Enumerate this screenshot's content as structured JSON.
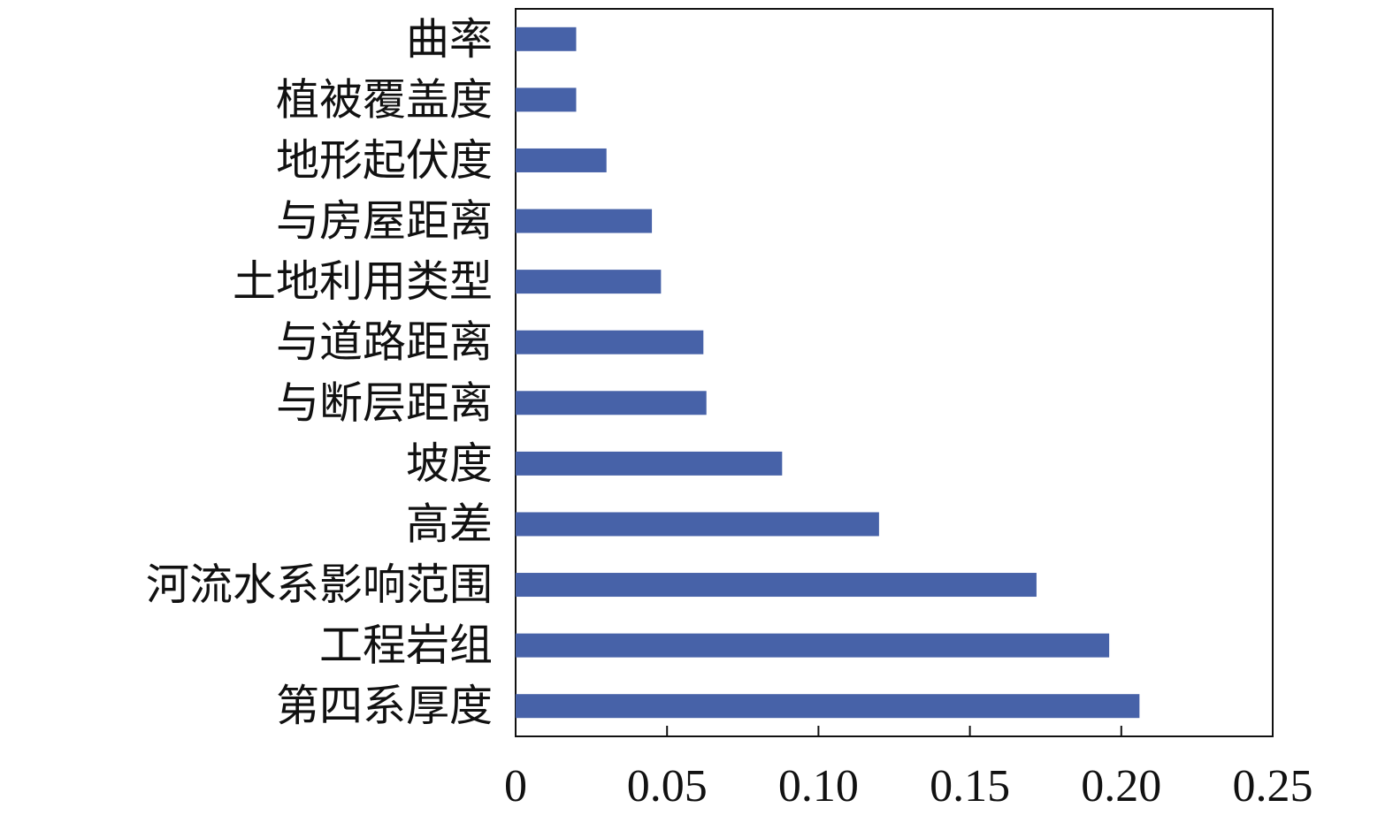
{
  "chart_data": {
    "type": "bar",
    "orientation": "horizontal",
    "title": "",
    "xlabel": "",
    "ylabel": "",
    "categories": [
      "曲率",
      "植被覆盖度",
      "地形起伏度",
      "与房屋距离",
      "土地利用类型",
      "与道路距离",
      "与断层距离",
      "坡度",
      "高差",
      "河流水系影响范围",
      "工程岩组",
      "第四系厚度"
    ],
    "values": [
      0.02,
      0.02,
      0.03,
      0.045,
      0.048,
      0.062,
      0.063,
      0.088,
      0.12,
      0.172,
      0.196,
      0.206
    ],
    "xlim": [
      0,
      0.25
    ],
    "xticks": [
      0,
      0.05,
      0.1,
      0.15,
      0.2,
      0.25
    ],
    "xtick_labels": [
      "0",
      "0.05",
      "0.10",
      "0.15",
      "0.20",
      "0.25"
    ],
    "bar_color": "#4762a8",
    "grid": false,
    "legend": "none"
  }
}
